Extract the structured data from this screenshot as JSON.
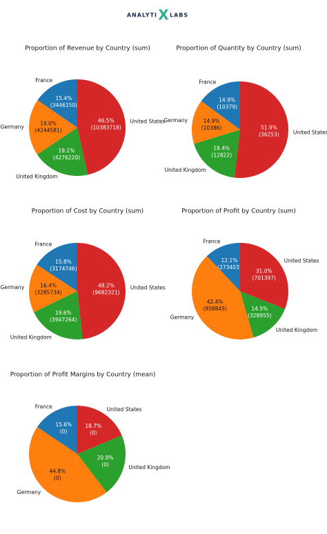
{
  "logo": {
    "left": "ANALYTI",
    "mark": "X",
    "right": "LABS"
  },
  "chart_data": [
    {
      "type": "pie",
      "title": "Proportion of Revenue by Country (sum)",
      "categories": [
        "France",
        "Germany",
        "United Kingdom",
        "United States"
      ],
      "values": [
        15.4,
        19.0,
        19.1,
        46.5
      ],
      "value_labels": [
        "15.4%",
        "19.0%",
        "19.1%",
        "46.5%"
      ],
      "amount_labels": [
        "(3446150)",
        "(4244581)",
        "(4276220)",
        "(10383718)"
      ],
      "colors": [
        "#1f77b4",
        "#ff7f0e",
        "#2ca02c",
        "#d62728"
      ]
    },
    {
      "type": "pie",
      "title": "Proportion of Quantity by Country (sum)",
      "categories": [
        "France",
        "Germany",
        "United Kingdom",
        "United States"
      ],
      "values": [
        14.9,
        14.9,
        18.4,
        51.9
      ],
      "value_labels": [
        "14.9%",
        "14.9%",
        "18.4%",
        "51.9%"
      ],
      "amount_labels": [
        "(10379)",
        "(10386)",
        "(12822)",
        "(36253)"
      ],
      "colors": [
        "#1f77b4",
        "#ff7f0e",
        "#2ca02c",
        "#d62728"
      ]
    },
    {
      "type": "pie",
      "title": "Proportion of Cost by Country (sum)",
      "categories": [
        "France",
        "Germany",
        "United Kingdom",
        "United States"
      ],
      "values": [
        15.8,
        16.4,
        19.6,
        48.2
      ],
      "value_labels": [
        "15.8%",
        "16.4%",
        "19.6%",
        "48.2%"
      ],
      "amount_labels": [
        "(3174746)",
        "(3285734)",
        "(3947264)",
        "(9682321)"
      ],
      "colors": [
        "#1f77b4",
        "#ff7f0e",
        "#2ca02c",
        "#d62728"
      ]
    },
    {
      "type": "pie",
      "title": "Proportion of Profit by Country (sum)",
      "categories": [
        "France",
        "Germany",
        "United Kingdom",
        "United States"
      ],
      "values": [
        12.1,
        42.4,
        14.5,
        31.0
      ],
      "value_labels": [
        "12.1%",
        "42.4%",
        "14.5%",
        "31.0%"
      ],
      "amount_labels": [
        "(273403)",
        "(958845)",
        "(328955)",
        "(701397)"
      ],
      "colors": [
        "#1f77b4",
        "#ff7f0e",
        "#2ca02c",
        "#d62728"
      ]
    },
    {
      "type": "pie",
      "title": "Proportion of Profit Margins by Country (mean)",
      "categories": [
        "France",
        "Germany",
        "United Kingdom",
        "United States"
      ],
      "values": [
        15.6,
        44.8,
        20.9,
        18.7
      ],
      "value_labels": [
        "15.6%",
        "44.8%",
        "20.9%",
        "18.7%"
      ],
      "amount_labels": [
        "(0)",
        "(0)",
        "(0)",
        "(0)"
      ],
      "colors": [
        "#1f77b4",
        "#ff7f0e",
        "#2ca02c",
        "#d62728"
      ]
    }
  ]
}
